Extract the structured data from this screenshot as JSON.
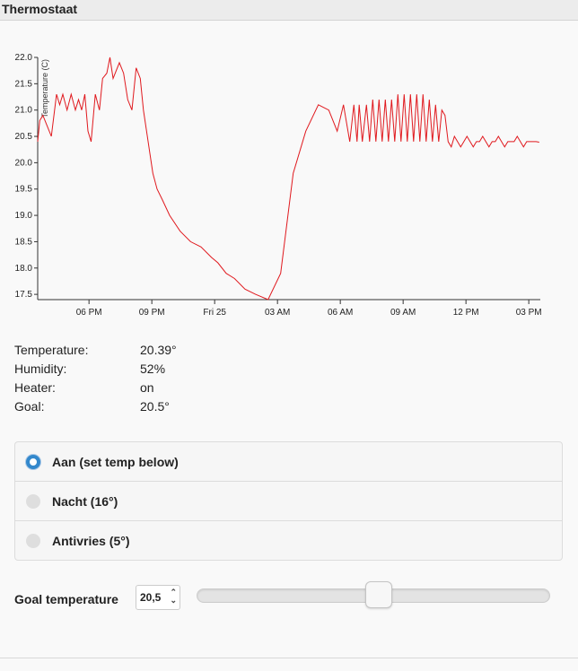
{
  "header": {
    "title": "Thermostaat"
  },
  "colors": {
    "line": "#e0191e",
    "accent": "#3388cc"
  },
  "chart_data": {
    "type": "line",
    "ylabel": "Temperature (C)",
    "xlabel": "",
    "ylim": [
      17.4,
      22.0
    ],
    "y_ticks": [
      17.5,
      18.0,
      18.5,
      19.0,
      19.5,
      20.0,
      20.5,
      21.0,
      21.5,
      22.0
    ],
    "y_tick_labels": [
      "17.5",
      "18.0",
      "18.5",
      "19.0",
      "19.5",
      "20.0",
      "20.5",
      "21.0",
      "21.5",
      "22.0"
    ],
    "x_range_hours": [
      0,
      24.0
    ],
    "x_tick_hours": [
      2.45,
      5.45,
      8.45,
      11.45,
      14.45,
      17.45,
      20.45,
      23.45
    ],
    "x_tick_labels": [
      "06 PM",
      "09 PM",
      "Fri 25",
      "03 AM",
      "06 AM",
      "09 AM",
      "12 PM",
      "03 PM"
    ],
    "x": [
      0,
      0.1,
      0.25,
      0.45,
      0.65,
      0.9,
      1.05,
      1.2,
      1.4,
      1.6,
      1.8,
      1.95,
      2.1,
      2.25,
      2.4,
      2.55,
      2.75,
      2.95,
      3.1,
      3.3,
      3.45,
      3.6,
      3.9,
      4.1,
      4.3,
      4.5,
      4.7,
      4.9,
      5.05,
      5.2,
      5.35,
      5.5,
      5.7,
      5.95,
      6.3,
      6.8,
      7.3,
      7.8,
      8.3,
      8.6,
      9.0,
      9.4,
      9.9,
      10.4,
      11.0,
      11.6,
      12.2,
      12.8,
      13.4,
      13.9,
      14.3,
      14.6,
      14.9,
      15.1,
      15.25,
      15.35,
      15.5,
      15.7,
      15.85,
      16.0,
      16.15,
      16.3,
      16.45,
      16.6,
      16.75,
      16.9,
      17.05,
      17.2,
      17.35,
      17.5,
      17.65,
      17.8,
      17.95,
      18.1,
      18.25,
      18.4,
      18.55,
      18.7,
      18.85,
      19.0,
      19.15,
      19.3,
      19.45,
      19.6,
      19.75,
      19.9,
      20.05,
      20.2,
      20.35,
      20.5,
      20.65,
      20.8,
      20.95,
      21.1,
      21.25,
      21.4,
      21.55,
      21.7,
      21.85,
      22.0,
      22.15,
      22.3,
      22.45,
      22.6,
      22.75,
      22.9,
      23.05,
      23.2,
      23.35,
      23.5,
      23.65,
      23.8,
      23.95
    ],
    "y": [
      20.4,
      20.8,
      20.9,
      20.7,
      20.5,
      21.3,
      21.1,
      21.3,
      21.0,
      21.3,
      21.0,
      21.2,
      21.0,
      21.3,
      20.6,
      20.4,
      21.3,
      21.0,
      21.6,
      21.7,
      22.0,
      21.6,
      21.9,
      21.7,
      21.2,
      21.0,
      21.8,
      21.6,
      21.0,
      20.6,
      20.2,
      19.8,
      19.5,
      19.3,
      19.0,
      18.7,
      18.5,
      18.4,
      18.2,
      18.1,
      17.9,
      17.8,
      17.6,
      17.5,
      17.4,
      17.9,
      19.8,
      20.6,
      21.1,
      21.0,
      20.6,
      21.1,
      20.4,
      21.1,
      20.4,
      21.1,
      20.4,
      21.1,
      20.4,
      21.2,
      20.4,
      21.2,
      20.4,
      21.2,
      20.4,
      21.2,
      20.4,
      21.3,
      20.4,
      21.3,
      20.4,
      21.3,
      20.4,
      21.3,
      20.4,
      21.3,
      20.4,
      21.2,
      20.4,
      21.1,
      20.4,
      21.0,
      20.9,
      20.4,
      20.3,
      20.5,
      20.4,
      20.3,
      20.4,
      20.5,
      20.4,
      20.3,
      20.4,
      20.4,
      20.5,
      20.4,
      20.3,
      20.4,
      20.4,
      20.5,
      20.4,
      20.3,
      20.4,
      20.4,
      20.4,
      20.5,
      20.4,
      20.3,
      20.4,
      20.4,
      20.4,
      20.4,
      20.39
    ]
  },
  "info": {
    "rows": [
      {
        "label": "Temperature:",
        "value": "20.39°"
      },
      {
        "label": "Humidity:",
        "value": "52%"
      },
      {
        "label": "Heater:",
        "value": "on"
      },
      {
        "label": "Goal:",
        "value": "20.5°"
      }
    ]
  },
  "modes": {
    "options": [
      {
        "label": "Aan (set temp below)",
        "selected": true
      },
      {
        "label": "Nacht (16°)",
        "selected": false
      },
      {
        "label": "Antivries (5°)",
        "selected": false
      }
    ]
  },
  "goal": {
    "label": "Goal temperature",
    "value": "20,5",
    "slider_value": 20.5,
    "slider_min": 5,
    "slider_max": 35
  }
}
